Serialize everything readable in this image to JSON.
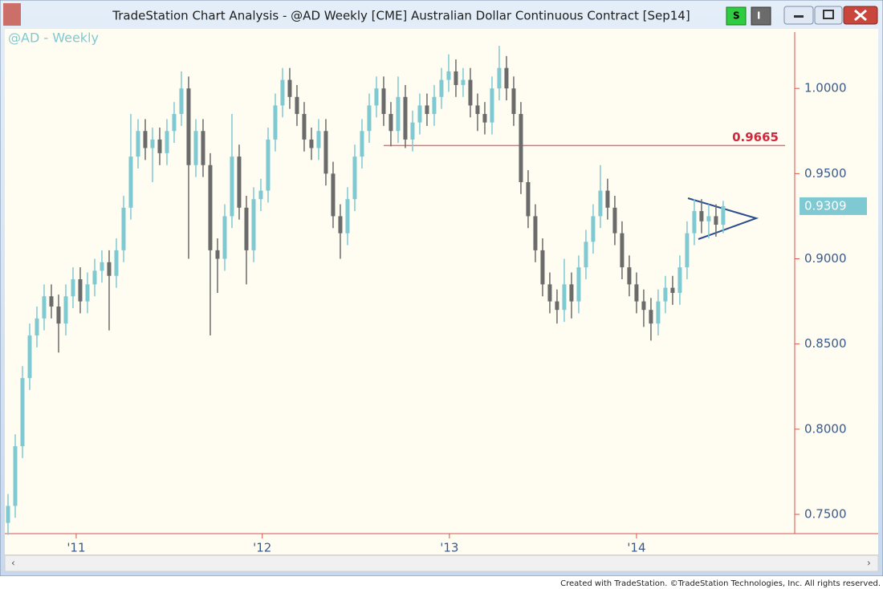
{
  "window": {
    "title": "TradeStation Chart Analysis - @AD Weekly [CME] Australian Dollar Continuous Contract [Sep14]",
    "buttons": [
      "S",
      "I"
    ]
  },
  "footer": "Created with TradeStation. ©TradeStation Technologies, Inc. All rights reserved.",
  "chart_data": {
    "type": "candlestick",
    "subtitle": "@AD - Weekly",
    "up_color": "#7fc9d3",
    "down_color": "#6b6b6b",
    "ylim": [
      0.7387,
      1.0307
    ],
    "yticks": [
      {
        "value": 0.75,
        "label": "0.7500"
      },
      {
        "value": 0.8,
        "label": "0.8000"
      },
      {
        "value": 0.85,
        "label": "0.8500"
      },
      {
        "value": 0.9,
        "label": "0.9000"
      },
      {
        "value": 0.95,
        "label": "0.9500"
      },
      {
        "value": 1,
        "label": "1.0000"
      }
    ],
    "xlim": [
      -0.22,
      108.9
    ],
    "xticks": [
      {
        "value": 9.44,
        "label": "'11"
      },
      {
        "value": 35.2,
        "label": "'12"
      },
      {
        "value": 61.1,
        "label": "'13"
      },
      {
        "value": 87.0,
        "label": "'14"
      }
    ],
    "reference_line": 0.9665,
    "open": [
      0.745,
      0.755,
      0.79,
      0.83,
      0.855,
      0.865,
      0.878,
      0.872,
      0.862,
      0.878,
      0.888,
      0.875,
      0.885,
      0.893,
      0.898,
      0.89,
      0.905,
      0.93,
      0.96,
      0.975,
      0.965,
      0.97,
      0.962,
      0.975,
      0.985,
      1.0,
      0.955,
      0.975,
      0.955,
      0.905,
      0.9,
      0.925,
      0.96,
      0.93,
      0.905,
      0.935,
      0.94,
      0.97,
      0.99,
      1.005,
      0.995,
      0.985,
      0.97,
      0.965,
      0.975,
      0.95,
      0.925,
      0.915,
      0.935,
      0.96,
      0.975,
      0.99,
      1.0,
      0.985,
      0.975,
      0.995,
      0.97,
      0.98,
      0.99,
      0.985,
      0.995,
      1.005,
      1.01,
      1.002,
      1.005,
      0.99,
      0.985,
      0.98,
      1.0,
      1.012,
      1.0,
      0.985,
      0.945,
      0.925,
      0.905,
      0.885,
      0.875,
      0.87,
      0.885,
      0.875,
      0.895,
      0.91,
      0.925,
      0.94,
      0.93,
      0.915,
      0.895,
      0.885,
      0.875,
      0.87,
      0.862,
      0.875,
      0.883,
      0.88,
      0.895,
      0.915,
      0.928,
      0.922,
      0.925,
      0.92
    ],
    "high": [
      0.762,
      0.797,
      0.837,
      0.862,
      0.872,
      0.885,
      0.885,
      0.879,
      0.885,
      0.895,
      0.895,
      0.892,
      0.9,
      0.905,
      0.905,
      0.912,
      0.937,
      0.985,
      0.982,
      0.982,
      0.977,
      0.977,
      0.982,
      0.992,
      1.01,
      1.007,
      0.982,
      0.982,
      0.962,
      0.912,
      0.932,
      0.985,
      0.967,
      0.937,
      0.942,
      0.947,
      0.977,
      0.997,
      1.012,
      1.012,
      1.002,
      0.992,
      0.977,
      0.982,
      0.982,
      0.957,
      0.932,
      0.942,
      0.967,
      0.982,
      0.997,
      1.007,
      1.007,
      0.992,
      1.007,
      1.002,
      0.987,
      0.997,
      0.997,
      1.002,
      1.012,
      1.02,
      1.017,
      1.012,
      1.012,
      0.997,
      0.992,
      1.007,
      1.025,
      1.019,
      1.007,
      0.992,
      0.952,
      0.932,
      0.912,
      0.892,
      0.882,
      0.9,
      0.892,
      0.902,
      0.917,
      0.932,
      0.955,
      0.947,
      0.937,
      0.922,
      0.902,
      0.892,
      0.882,
      0.877,
      0.882,
      0.89,
      0.89,
      0.902,
      0.922,
      0.935,
      0.935,
      0.932,
      0.932,
      0.934
    ],
    "low": [
      0.738,
      0.748,
      0.783,
      0.823,
      0.848,
      0.858,
      0.865,
      0.845,
      0.855,
      0.871,
      0.868,
      0.868,
      0.878,
      0.886,
      0.858,
      0.883,
      0.898,
      0.923,
      0.953,
      0.958,
      0.945,
      0.955,
      0.955,
      0.968,
      0.978,
      0.9,
      0.948,
      0.948,
      0.855,
      0.88,
      0.893,
      0.918,
      0.923,
      0.885,
      0.898,
      0.928,
      0.933,
      0.963,
      0.983,
      0.988,
      0.978,
      0.963,
      0.958,
      0.958,
      0.943,
      0.918,
      0.9,
      0.908,
      0.928,
      0.953,
      0.968,
      0.983,
      0.978,
      0.966,
      0.968,
      0.965,
      0.963,
      0.973,
      0.978,
      0.978,
      0.988,
      0.998,
      0.995,
      0.995,
      0.983,
      0.975,
      0.973,
      0.973,
      0.993,
      0.993,
      0.978,
      0.938,
      0.918,
      0.898,
      0.878,
      0.868,
      0.862,
      0.863,
      0.865,
      0.868,
      0.888,
      0.903,
      0.918,
      0.923,
      0.908,
      0.888,
      0.878,
      0.868,
      0.86,
      0.852,
      0.855,
      0.868,
      0.873,
      0.873,
      0.888,
      0.908,
      0.915,
      0.912,
      0.913,
      0.915
    ],
    "close": [
      0.755,
      0.79,
      0.83,
      0.855,
      0.865,
      0.878,
      0.872,
      0.862,
      0.878,
      0.888,
      0.875,
      0.885,
      0.893,
      0.898,
      0.89,
      0.905,
      0.93,
      0.96,
      0.975,
      0.965,
      0.97,
      0.962,
      0.975,
      0.985,
      1.0,
      0.955,
      0.975,
      0.955,
      0.905,
      0.9,
      0.925,
      0.96,
      0.93,
      0.905,
      0.935,
      0.94,
      0.97,
      0.99,
      1.005,
      0.995,
      0.985,
      0.97,
      0.965,
      0.975,
      0.95,
      0.925,
      0.915,
      0.935,
      0.96,
      0.975,
      0.99,
      1.0,
      0.985,
      0.975,
      0.995,
      0.97,
      0.98,
      0.99,
      0.985,
      0.995,
      1.005,
      1.01,
      1.002,
      1.005,
      0.99,
      0.985,
      0.98,
      1.0,
      1.012,
      1.0,
      0.985,
      0.945,
      0.925,
      0.905,
      0.885,
      0.875,
      0.87,
      0.885,
      0.875,
      0.895,
      0.91,
      0.925,
      0.94,
      0.93,
      0.915,
      0.895,
      0.885,
      0.875,
      0.87,
      0.862,
      0.875,
      0.883,
      0.88,
      0.895,
      0.915,
      0.928,
      0.922,
      0.925,
      0.92,
      0.9309
    ]
  }
}
